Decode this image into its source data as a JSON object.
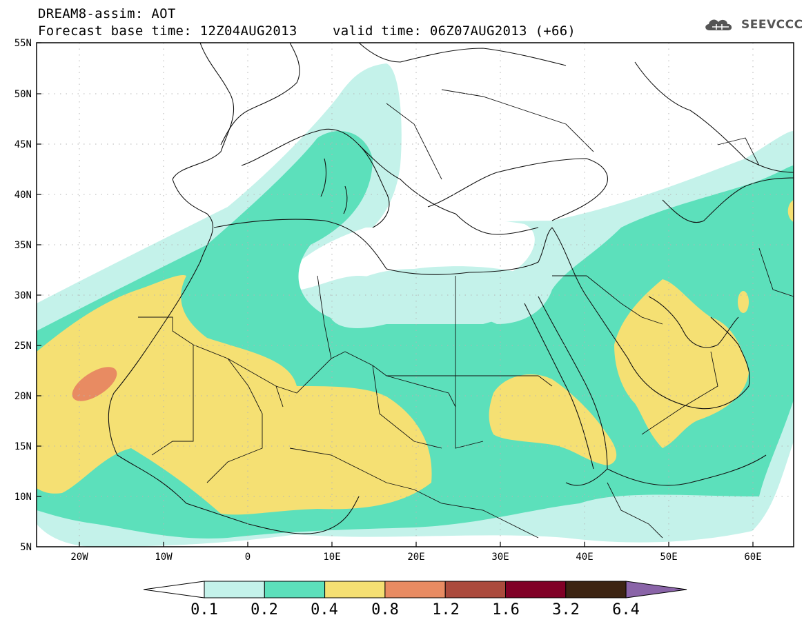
{
  "header": {
    "title": "DREAM8-assim: AOT",
    "base_time": "Forecast base time: 12Z04AUG2013",
    "valid_time": "valid time: 06Z07AUG2013 (+66)"
  },
  "logo": {
    "text": "SEEVCCC",
    "icon": "cloud-icon"
  },
  "axes": {
    "lat_labels": [
      "55N",
      "50N",
      "45N",
      "40N",
      "35N",
      "30N",
      "25N",
      "20N",
      "15N",
      "10N",
      "5N"
    ],
    "lon_labels": [
      "20W",
      "10W",
      "0",
      "10E",
      "20E",
      "30E",
      "40E",
      "50E",
      "60E"
    ]
  },
  "colorbar": {
    "labels": [
      "0.1",
      "0.2",
      "0.4",
      "0.8",
      "1.2",
      "1.6",
      "3.2",
      "6.4"
    ],
    "colors": [
      "#ffffff",
      "#c4f2ea",
      "#5ce0bb",
      "#f5e073",
      "#e88b62",
      "#ab4a3c",
      "#800026",
      "#3c2412",
      "#8a64a8"
    ]
  },
  "map": {
    "field": "AOT",
    "colors": {
      "light": "#c4f2ea",
      "teal": "#5ce0bb",
      "yellow": "#f5e073",
      "orange": "#e88b62"
    }
  }
}
